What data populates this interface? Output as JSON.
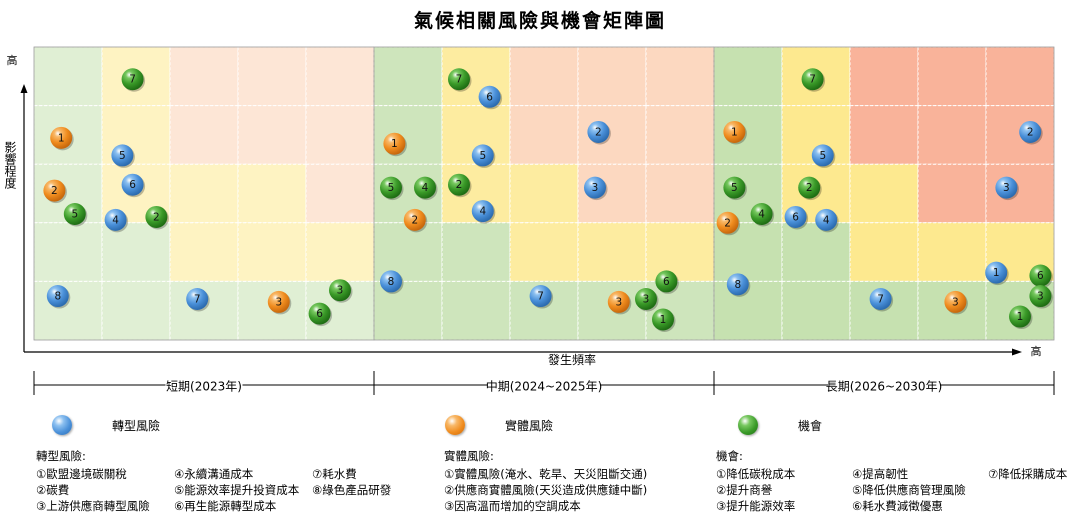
{
  "title": "氣候相關風險與機會矩陣圖",
  "chart_data": {
    "type": "scatter",
    "y_axis": {
      "label": "影響程度",
      "high_label": "高"
    },
    "x_axis": {
      "label": "發生頻率",
      "high_label": "高"
    },
    "grid": {
      "columns": 5,
      "rows": 5
    },
    "panels": [
      {
        "label": "短期(2023年)"
      },
      {
        "label": "中期(2024~2025年)"
      },
      {
        "label": "長期(2026~2030年)"
      }
    ],
    "cell_colors": {
      "green": "#c6e1b0",
      "yellow": "#fde98f",
      "orange": "#fbd1b5",
      "red": "#f9b39a"
    },
    "panel_zones": [
      {
        "colors": [
          [
            "green",
            "yellow",
            "orange",
            "orange",
            "orange"
          ],
          [
            "green",
            "yellow",
            "orange",
            "orange",
            "orange"
          ],
          [
            "green",
            "yellow",
            "yellow",
            "yellow",
            "orange"
          ],
          [
            "green",
            "green",
            "yellow",
            "yellow",
            "yellow"
          ],
          [
            "green",
            "green",
            "green",
            "green",
            "green"
          ]
        ],
        "opacity": 0.55
      },
      {
        "colors": [
          [
            "green",
            "yellow",
            "orange",
            "orange",
            "orange"
          ],
          [
            "green",
            "yellow",
            "orange",
            "orange",
            "orange"
          ],
          [
            "green",
            "yellow",
            "yellow",
            "orange",
            "orange"
          ],
          [
            "green",
            "green",
            "yellow",
            "yellow",
            "yellow"
          ],
          [
            "green",
            "green",
            "green",
            "green",
            "green"
          ]
        ],
        "opacity": 0.85
      },
      {
        "colors": [
          [
            "green",
            "yellow",
            "red",
            "red",
            "red"
          ],
          [
            "green",
            "yellow",
            "red",
            "red",
            "red"
          ],
          [
            "green",
            "yellow",
            "yellow",
            "red",
            "red"
          ],
          [
            "green",
            "green",
            "yellow",
            "yellow",
            "yellow"
          ],
          [
            "green",
            "green",
            "green",
            "green",
            "green"
          ]
        ],
        "opacity": 1.0
      }
    ],
    "series": [
      {
        "name": "轉型風險",
        "color": "#4a90d9"
      },
      {
        "name": "實體風險",
        "color": "#f08c1e"
      },
      {
        "name": "機會",
        "color": "#3a9a28"
      }
    ],
    "points": [
      {
        "panel": 0,
        "series": 2,
        "label": "7",
        "x": 1.45,
        "y": 4.45
      },
      {
        "panel": 0,
        "series": 1,
        "label": "1",
        "x": 0.4,
        "y": 3.45
      },
      {
        "panel": 0,
        "series": 0,
        "label": "5",
        "x": 1.3,
        "y": 3.15
      },
      {
        "panel": 0,
        "series": 0,
        "label": "6",
        "x": 1.45,
        "y": 2.65
      },
      {
        "panel": 0,
        "series": 1,
        "label": "2",
        "x": 0.3,
        "y": 2.55
      },
      {
        "panel": 0,
        "series": 2,
        "label": "5",
        "x": 0.6,
        "y": 2.15
      },
      {
        "panel": 0,
        "series": 0,
        "label": "4",
        "x": 1.2,
        "y": 2.05
      },
      {
        "panel": 0,
        "series": 2,
        "label": "2",
        "x": 1.8,
        "y": 2.1
      },
      {
        "panel": 0,
        "series": 0,
        "label": "8",
        "x": 0.35,
        "y": 0.75
      },
      {
        "panel": 0,
        "series": 0,
        "label": "7",
        "x": 2.4,
        "y": 0.7
      },
      {
        "panel": 0,
        "series": 1,
        "label": "3",
        "x": 3.6,
        "y": 0.65
      },
      {
        "panel": 0,
        "series": 2,
        "label": "3",
        "x": 4.5,
        "y": 0.85
      },
      {
        "panel": 0,
        "series": 2,
        "label": "6",
        "x": 4.2,
        "y": 0.45
      },
      {
        "panel": 1,
        "series": 2,
        "label": "7",
        "x": 1.25,
        "y": 4.45
      },
      {
        "panel": 1,
        "series": 0,
        "label": "6",
        "x": 1.7,
        "y": 4.15
      },
      {
        "panel": 1,
        "series": 1,
        "label": "1",
        "x": 0.3,
        "y": 3.35
      },
      {
        "panel": 1,
        "series": 0,
        "label": "2",
        "x": 3.3,
        "y": 3.55
      },
      {
        "panel": 1,
        "series": 0,
        "label": "5",
        "x": 1.6,
        "y": 3.15
      },
      {
        "panel": 1,
        "series": 2,
        "label": "5",
        "x": 0.25,
        "y": 2.6
      },
      {
        "panel": 1,
        "series": 2,
        "label": "4",
        "x": 0.75,
        "y": 2.6
      },
      {
        "panel": 1,
        "series": 2,
        "label": "2",
        "x": 1.25,
        "y": 2.65
      },
      {
        "panel": 1,
        "series": 0,
        "label": "3",
        "x": 3.25,
        "y": 2.6
      },
      {
        "panel": 1,
        "series": 1,
        "label": "2",
        "x": 0.6,
        "y": 2.05
      },
      {
        "panel": 1,
        "series": 0,
        "label": "4",
        "x": 1.6,
        "y": 2.2
      },
      {
        "panel": 1,
        "series": 0,
        "label": "8",
        "x": 0.25,
        "y": 1.0
      },
      {
        "panel": 1,
        "series": 0,
        "label": "7",
        "x": 2.45,
        "y": 0.75
      },
      {
        "panel": 1,
        "series": 1,
        "label": "3",
        "x": 3.6,
        "y": 0.65
      },
      {
        "panel": 1,
        "series": 2,
        "label": "6",
        "x": 4.3,
        "y": 1.0
      },
      {
        "panel": 1,
        "series": 2,
        "label": "3",
        "x": 4.0,
        "y": 0.7
      },
      {
        "panel": 1,
        "series": 2,
        "label": "1",
        "x": 4.25,
        "y": 0.35
      },
      {
        "panel": 2,
        "series": 2,
        "label": "7",
        "x": 1.45,
        "y": 4.45
      },
      {
        "panel": 2,
        "series": 1,
        "label": "1",
        "x": 0.3,
        "y": 3.55
      },
      {
        "panel": 2,
        "series": 0,
        "label": "2",
        "x": 4.65,
        "y": 3.55
      },
      {
        "panel": 2,
        "series": 0,
        "label": "5",
        "x": 1.6,
        "y": 3.15
      },
      {
        "panel": 2,
        "series": 2,
        "label": "5",
        "x": 0.3,
        "y": 2.6
      },
      {
        "panel": 2,
        "series": 2,
        "label": "2",
        "x": 1.4,
        "y": 2.6
      },
      {
        "panel": 2,
        "series": 0,
        "label": "3",
        "x": 4.3,
        "y": 2.6
      },
      {
        "panel": 2,
        "series": 1,
        "label": "2",
        "x": 0.2,
        "y": 2.0
      },
      {
        "panel": 2,
        "series": 2,
        "label": "4",
        "x": 0.7,
        "y": 2.15
      },
      {
        "panel": 2,
        "series": 0,
        "label": "6",
        "x": 1.2,
        "y": 2.1
      },
      {
        "panel": 2,
        "series": 0,
        "label": "4",
        "x": 1.65,
        "y": 2.05
      },
      {
        "panel": 2,
        "series": 0,
        "label": "8",
        "x": 0.35,
        "y": 0.95
      },
      {
        "panel": 2,
        "series": 0,
        "label": "1",
        "x": 4.15,
        "y": 1.15
      },
      {
        "panel": 2,
        "series": 2,
        "label": "6",
        "x": 4.8,
        "y": 1.1
      },
      {
        "panel": 2,
        "series": 0,
        "label": "7",
        "x": 2.45,
        "y": 0.7
      },
      {
        "panel": 2,
        "series": 1,
        "label": "3",
        "x": 3.55,
        "y": 0.65
      },
      {
        "panel": 2,
        "series": 2,
        "label": "3",
        "x": 4.8,
        "y": 0.75
      },
      {
        "panel": 2,
        "series": 2,
        "label": "1",
        "x": 4.5,
        "y": 0.4
      }
    ]
  },
  "descriptions": [
    {
      "heading": "轉型風險:",
      "items": [
        "①歐盟邊境碳關稅",
        "②碳費",
        "③上游供應商轉型風險",
        "④永續溝通成本",
        "⑤能源效率提升投資成本",
        "⑥再生能源轉型成本",
        "⑦耗水費",
        "⑧綠色產品研發"
      ]
    },
    {
      "heading": "實體風險:",
      "items": [
        "①實體風險(淹水、乾旱、天災阻斷交通)",
        "②供應商實體風險(天災造成供應鏈中斷)",
        "③因高溫而增加的空調成本"
      ]
    },
    {
      "heading": "機會:",
      "items": [
        "①降低碳稅成本",
        "②提升商譽",
        "③提升能源效率",
        "④提高韌性",
        "⑤降低供應商管理風險",
        "⑥耗水費減徵優惠",
        "⑦降低採購成本"
      ]
    }
  ]
}
